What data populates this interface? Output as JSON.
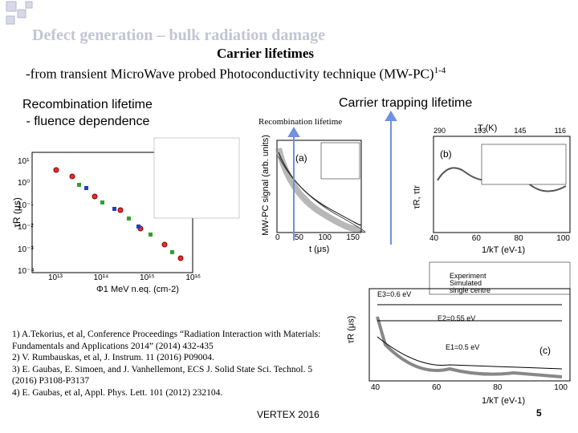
{
  "header": {
    "title": "Defect generation – bulk radiation damage",
    "subtitle": "Carrier lifetimes",
    "technique": "-from  transient Micro",
    "technique_rest": "Wave probed Photoconductivity technique (MW-PC)",
    "technique_sup": "1-4"
  },
  "left_heading": [
    "Recombination lifetime",
    " - fluence dependence"
  ],
  "right_heading": "Carrier trapping lifetime",
  "recombination_label": "Recombination lifetime",
  "plots": {
    "fluence": {
      "y_label": "τR (μs)",
      "x_label": "Φ1 MeV n.eq. (cm-2)",
      "x_ticks": [
        "10¹³",
        "10¹⁴",
        "10¹⁵",
        "10¹⁶"
      ],
      "y_ticks": [
        "10¹",
        "10⁰",
        "10⁻¹",
        "10⁻²",
        "10⁻³",
        "10⁻⁴"
      ]
    },
    "transient": {
      "panel": "(a)",
      "y_label": "MW-PC signal (arb. units)",
      "x_label": "t (μs)",
      "x_ticks": [
        "0",
        "50",
        "100",
        "150"
      ]
    },
    "trapping_b": {
      "panel": "(b)",
      "top_label": "T (K)",
      "y_label": "τR, τtr",
      "x_label": "1/kT (eV-1)",
      "x_ticks": [
        "40",
        "60",
        "80",
        "100"
      ],
      "top_ticks": [
        "290",
        "193",
        "145",
        "116"
      ]
    },
    "trapping_c": {
      "panel": "(c)",
      "y_label": "τR (μs)",
      "x_label": "1/kT (eV-1)",
      "x_ticks": [
        "40",
        "60",
        "80",
        "100"
      ],
      "legend": [
        "Experiment",
        "Simulated",
        "single centre"
      ],
      "annotations": [
        "E3=0.6 eV",
        "E2=0.55 eV",
        "E1=0.5 eV"
      ]
    }
  },
  "references": [
    "1) A.Tekorius, et al, Conference Proceedings “Radiation Interaction with Materials:",
    "Fundamentals and Applications 2014” (2014) 432-435",
    "2) V. Rumbauskas, et al, J. Instrum. 11 (2016) P09004.",
    "3) E. Gaubas, E. Simoen, and J. Vanhellemont, ECS J. Solid State Sci. Technol. 5",
    "(2016) P3108-P3137",
    "4) E. Gaubas, et al, Appl. Phys. Lett. 101 (2012) 232104."
  ],
  "footer": "VERTEX 2016",
  "page_number": "5"
}
